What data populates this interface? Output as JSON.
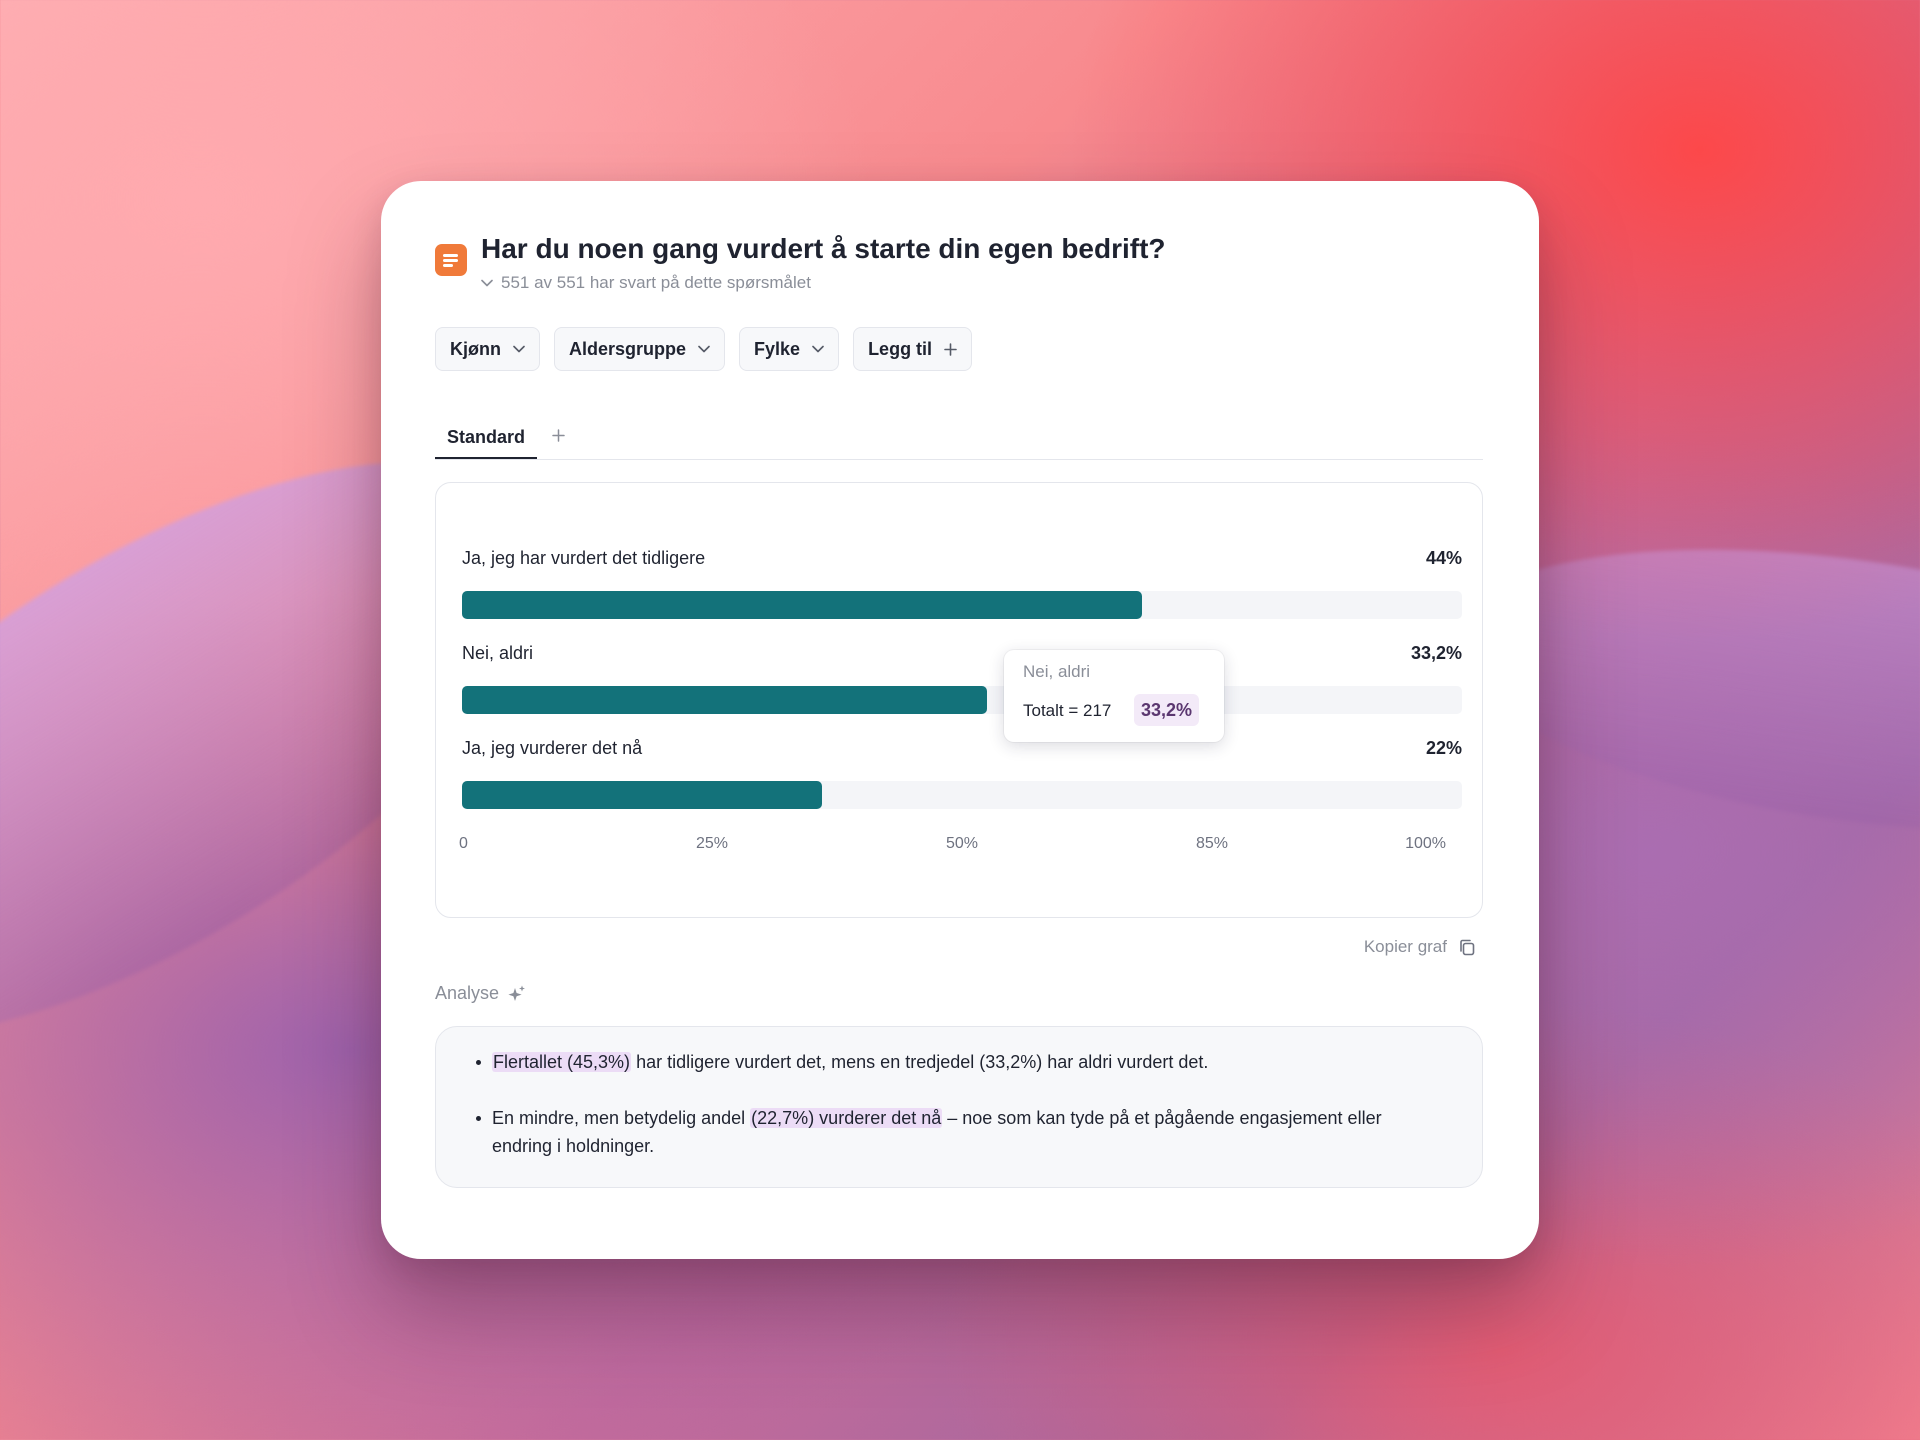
{
  "question": {
    "title": "Har du noen gang vurdert å starte din egen bedrift?",
    "subtitle": "551 av 551 har svart på dette spørsmålet"
  },
  "filters": [
    {
      "label": "Kjønn",
      "icon": "chevron-down-icon"
    },
    {
      "label": "Aldersgruppe",
      "icon": "chevron-down-icon"
    },
    {
      "label": "Fylke",
      "icon": "chevron-down-icon"
    },
    {
      "label": "Legg til",
      "icon": "plus-icon"
    }
  ],
  "tabs": [
    {
      "label": "Standard",
      "active": true
    }
  ],
  "chart_data": {
    "type": "bar",
    "orientation": "horizontal",
    "categories": [
      "Ja, jeg har vurdert det tidligere",
      "Nei, aldri",
      "Ja, jeg vurderer det nå"
    ],
    "value_labels": [
      "44%",
      "33,2%",
      "22%"
    ],
    "values": [
      68,
      52.5,
      36
    ],
    "x_ticks": [
      "0",
      "25%",
      "50%",
      "85%",
      "100%"
    ],
    "x_tick_values": [
      0,
      25,
      50,
      75,
      100
    ],
    "xlim": [
      0,
      100
    ],
    "bar_color": "#13727a",
    "grid": false,
    "tooltip": {
      "title": "Nei, aldri",
      "total": "Totalt = 217",
      "pct": "33,2%"
    }
  },
  "copy_label": "Kopier graf",
  "analysis": {
    "title": "Analyse",
    "bullets": [
      {
        "highlight": "Flertallet (45,3%)",
        "rest": " har tidligere vurdert det, mens en tredjedel (33,2%) har aldri vurdert det."
      },
      {
        "before": "En mindre, men betydelig andel ",
        "highlight": "(22,7%) vurderer det nå",
        "rest": " – noe som kan tyde på et pågående engasjement eller endring i holdninger."
      }
    ]
  },
  "colors": {
    "accent": "#13727a",
    "icon": "#f07a3a",
    "highlight": "#ecdcf6"
  }
}
